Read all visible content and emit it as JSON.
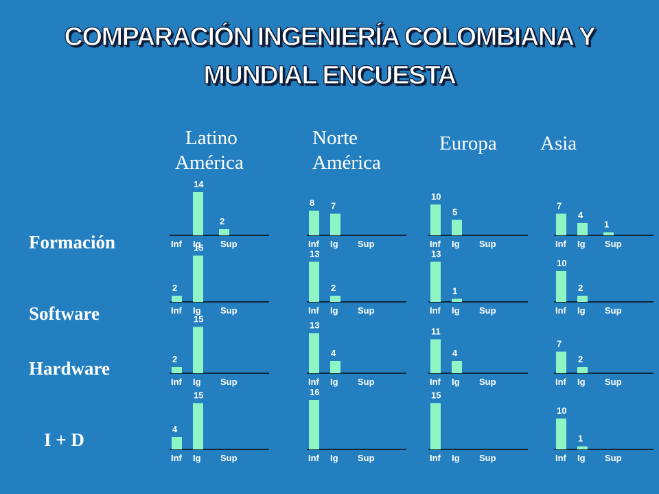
{
  "title": {
    "line1": "COMPARACIÓN INGENIERÍA COLOMBIANA Y",
    "line2": "MUNDIAL ENCUESTA"
  },
  "columns": {
    "latino_1": "Latino",
    "latino_2": "América",
    "norte_1": "Norte",
    "norte_2": "América",
    "europa": "Europa",
    "asia": "Asia"
  },
  "rows": {
    "formacion": "Formación",
    "software": "Software",
    "hardware": "Hardware",
    "id": "I + D"
  },
  "colors": {
    "background": "#247fc0",
    "bar": "#8ff5c5",
    "text": "#ffffff"
  },
  "chart_data": {
    "type": "bar",
    "categories": [
      "Inf",
      "Ig",
      "Sup"
    ],
    "ylim": [
      0,
      16
    ],
    "panels": [
      {
        "row": "Formación",
        "region": "Latino América",
        "values": [
          null,
          14,
          2
        ],
        "labels": [
          "",
          "14",
          "2"
        ]
      },
      {
        "row": "Formación",
        "region": "Norte América",
        "values": [
          8,
          7,
          null
        ],
        "labels": [
          "8",
          "7",
          ""
        ]
      },
      {
        "row": "Formación",
        "region": "Europa",
        "values": [
          10,
          5,
          null
        ],
        "labels": [
          "10",
          "5",
          ""
        ]
      },
      {
        "row": "Formación",
        "region": "Asia",
        "values": [
          7,
          4,
          1
        ],
        "labels": [
          "7",
          "4",
          "1"
        ]
      },
      {
        "row": "Software",
        "region": "Latino América",
        "values": [
          2,
          15,
          null
        ],
        "labels": [
          "2",
          "15",
          ""
        ]
      },
      {
        "row": "Software",
        "region": "Norte América",
        "values": [
          13,
          2,
          null
        ],
        "labels": [
          "13",
          "2",
          ""
        ]
      },
      {
        "row": "Software",
        "region": "Europa",
        "values": [
          13,
          1,
          null
        ],
        "labels": [
          "13",
          "1",
          ""
        ]
      },
      {
        "row": "Software",
        "region": "Asia",
        "values": [
          10,
          2,
          null
        ],
        "labels": [
          "10",
          "2",
          ""
        ]
      },
      {
        "row": "Hardware",
        "region": "Latino América",
        "values": [
          2,
          15,
          null
        ],
        "labels": [
          "2",
          "15",
          ""
        ]
      },
      {
        "row": "Hardware",
        "region": "Norte América",
        "values": [
          13,
          4,
          null
        ],
        "labels": [
          "13",
          "4",
          ""
        ]
      },
      {
        "row": "Hardware",
        "region": "Europa",
        "values": [
          11,
          4,
          null
        ],
        "labels": [
          "11",
          "4",
          ""
        ]
      },
      {
        "row": "Hardware",
        "region": "Asia",
        "values": [
          7,
          2,
          null
        ],
        "labels": [
          "7",
          "2",
          ""
        ]
      },
      {
        "row": "I + D",
        "region": "Latino América",
        "values": [
          4,
          15,
          null
        ],
        "labels": [
          "4",
          "15",
          ""
        ]
      },
      {
        "row": "I + D",
        "region": "Norte América",
        "values": [
          16,
          null,
          null
        ],
        "labels": [
          "16",
          "",
          ""
        ]
      },
      {
        "row": "I + D",
        "region": "Europa",
        "values": [
          15,
          null,
          null
        ],
        "labels": [
          "15",
          "",
          ""
        ]
      },
      {
        "row": "I + D",
        "region": "Asia",
        "values": [
          10,
          1,
          null
        ],
        "labels": [
          "10",
          "1",
          ""
        ]
      }
    ]
  }
}
